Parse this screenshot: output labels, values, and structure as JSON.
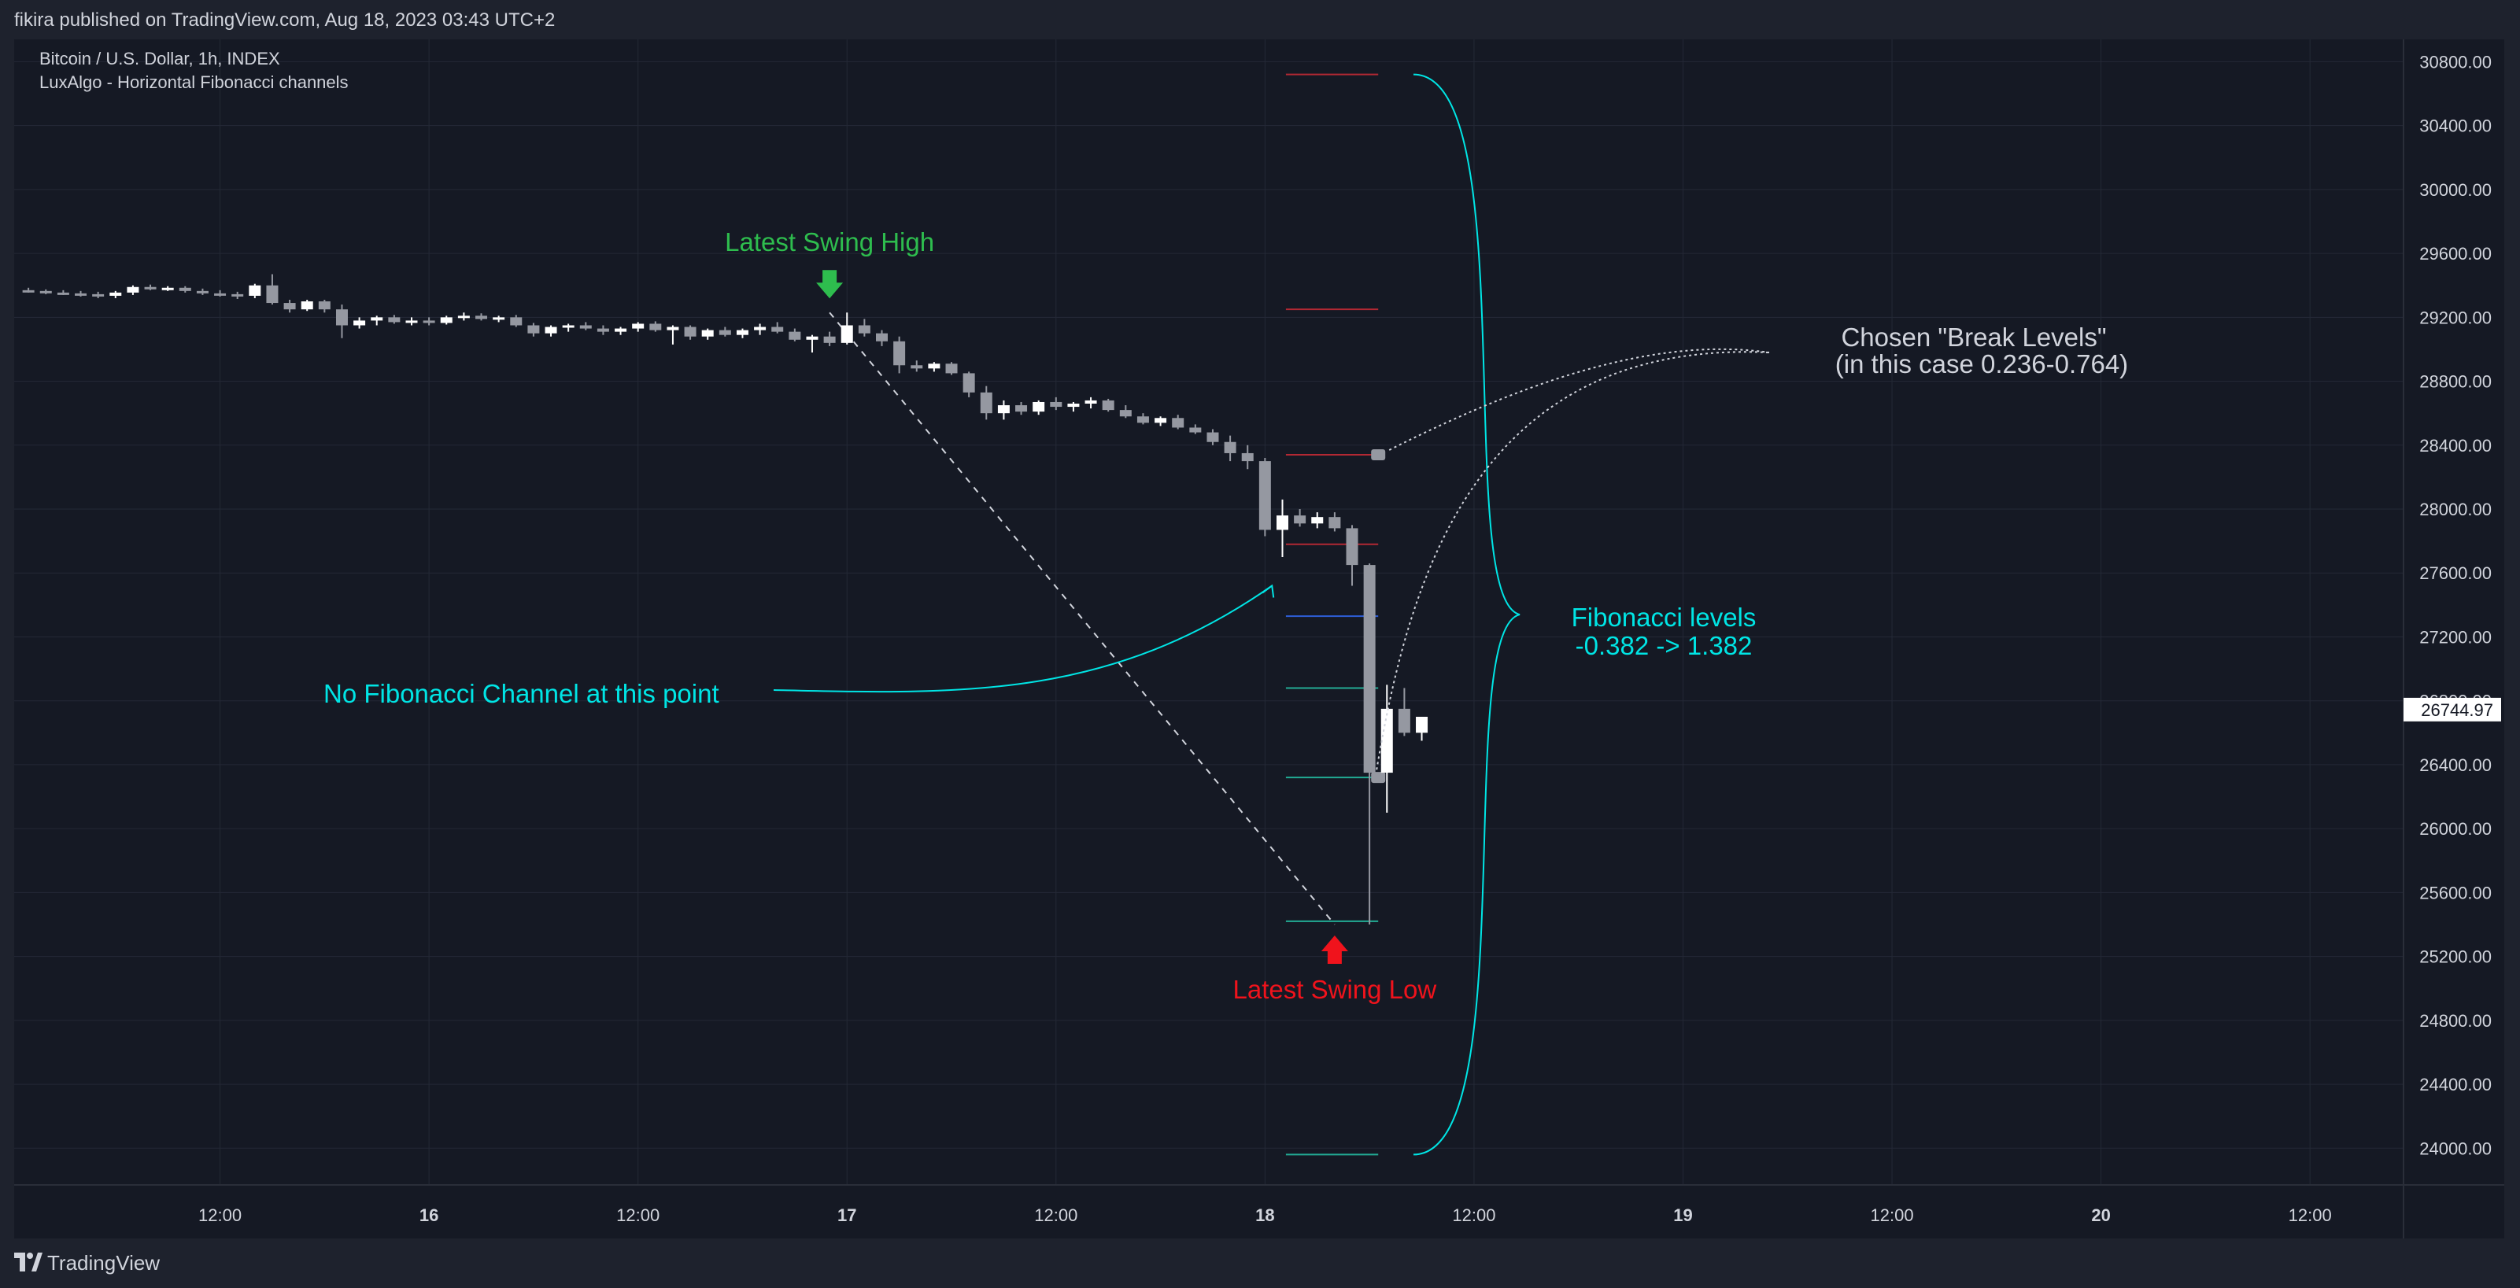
{
  "publish_line": "fikira published on TradingView.com, Aug 18, 2023 03:43 UTC+2",
  "legend": {
    "symbol": "Bitcoin / U.S. Dollar, 1h, INDEX",
    "indicator": "LuxAlgo - Horizontal Fibonacci channels"
  },
  "footer": {
    "brand": "TradingView"
  },
  "colors": {
    "background": "#151924",
    "frame": "#1e222d",
    "grid": "#242936",
    "text": "#d1d4dc",
    "candle_up": "#ffffff",
    "candle_down": "#9598a1",
    "fib_red": "#b22833",
    "fib_blue": "#2e5ed8",
    "fib_green": "#22ab94",
    "annotation_cyan": "#00e5e5",
    "annotation_green": "#2ebd4e",
    "annotation_red": "#f0131c"
  },
  "chart_data": {
    "type": "candlestick",
    "x_ticks": [
      {
        "label": "12:00",
        "h": 12
      },
      {
        "label": "16",
        "h": 24
      },
      {
        "label": "12:00",
        "h": 36
      },
      {
        "label": "17",
        "h": 48
      },
      {
        "label": "12:00",
        "h": 60
      },
      {
        "label": "18",
        "h": 72
      },
      {
        "label": "12:00",
        "h": 84
      },
      {
        "label": "19",
        "h": 96
      },
      {
        "label": "12:00",
        "h": 108
      },
      {
        "label": "20",
        "h": 120
      },
      {
        "label": "12:00",
        "h": 132
      }
    ],
    "y_ticks": [
      24000,
      24400,
      24800,
      25200,
      25600,
      26000,
      26400,
      26800,
      27200,
      27600,
      28000,
      28400,
      28800,
      29200,
      29600,
      30000,
      30400,
      30800
    ],
    "y_tick_labels": [
      "24000.00",
      "24400.00",
      "24800.00",
      "25200.00",
      "25600.00",
      "26000.00",
      "26400.00",
      "26800.00",
      "27200.00",
      "27600.00",
      "28000.00",
      "28400.00",
      "28800.00",
      "29200.00",
      "29600.00",
      "30000.00",
      "30400.00",
      "30800.00"
    ],
    "ylim": [
      23770,
      30940
    ],
    "current_price": 26744.97,
    "current_price_label": "26744.97",
    "candles": [
      [
        29370,
        29385,
        29355,
        29365
      ],
      [
        29365,
        29375,
        29345,
        29355
      ],
      [
        29355,
        29370,
        29340,
        29350
      ],
      [
        29350,
        29365,
        29330,
        29345
      ],
      [
        29345,
        29360,
        29320,
        29335
      ],
      [
        29335,
        29365,
        29320,
        29355
      ],
      [
        29355,
        29400,
        29340,
        29390
      ],
      [
        29390,
        29405,
        29370,
        29380
      ],
      [
        29380,
        29395,
        29365,
        29385
      ],
      [
        29385,
        29395,
        29355,
        29365
      ],
      [
        29365,
        29380,
        29340,
        29350
      ],
      [
        29350,
        29370,
        29330,
        29345
      ],
      [
        29345,
        29360,
        29315,
        29335
      ],
      [
        29335,
        29410,
        29320,
        29400
      ],
      [
        29400,
        29470,
        29280,
        29290
      ],
      [
        29290,
        29310,
        29230,
        29250
      ],
      [
        29250,
        29310,
        29240,
        29300
      ],
      [
        29300,
        29310,
        29230,
        29250
      ],
      [
        29250,
        29280,
        29070,
        29150
      ],
      [
        29150,
        29200,
        29130,
        29180
      ],
      [
        29180,
        29210,
        29150,
        29200
      ],
      [
        29200,
        29215,
        29160,
        29170
      ],
      [
        29170,
        29200,
        29150,
        29180
      ],
      [
        29180,
        29200,
        29150,
        29165
      ],
      [
        29165,
        29210,
        29155,
        29200
      ],
      [
        29200,
        29230,
        29180,
        29210
      ],
      [
        29210,
        29225,
        29180,
        29190
      ],
      [
        29190,
        29210,
        29170,
        29200
      ],
      [
        29200,
        29215,
        29140,
        29150
      ],
      [
        29150,
        29165,
        29080,
        29100
      ],
      [
        29100,
        29150,
        29080,
        29140
      ],
      [
        29140,
        29160,
        29110,
        29150
      ],
      [
        29150,
        29170,
        29120,
        29130
      ],
      [
        29130,
        29150,
        29090,
        29110
      ],
      [
        29110,
        29140,
        29090,
        29130
      ],
      [
        29130,
        29170,
        29110,
        29160
      ],
      [
        29160,
        29175,
        29110,
        29120
      ],
      [
        29120,
        29150,
        29030,
        29140
      ],
      [
        29140,
        29150,
        29060,
        29080
      ],
      [
        29080,
        29130,
        29060,
        29120
      ],
      [
        29120,
        29140,
        29080,
        29090
      ],
      [
        29090,
        29130,
        29070,
        29120
      ],
      [
        29120,
        29160,
        29090,
        29140
      ],
      [
        29140,
        29170,
        29100,
        29110
      ],
      [
        29110,
        29130,
        29050,
        29060
      ],
      [
        29060,
        29090,
        28980,
        29080
      ],
      [
        29080,
        29110,
        29020,
        29040
      ],
      [
        29040,
        29230,
        29030,
        29150
      ],
      [
        29150,
        29190,
        29080,
        29100
      ],
      [
        29100,
        29120,
        29020,
        29050
      ],
      [
        29050,
        29080,
        28850,
        28900
      ],
      [
        28900,
        28930,
        28860,
        28880
      ],
      [
        28880,
        28920,
        28860,
        28910
      ],
      [
        28910,
        28920,
        28840,
        28850
      ],
      [
        28850,
        28860,
        28700,
        28730
      ],
      [
        28730,
        28770,
        28560,
        28600
      ],
      [
        28600,
        28680,
        28560,
        28650
      ],
      [
        28650,
        28670,
        28590,
        28610
      ],
      [
        28610,
        28680,
        28590,
        28670
      ],
      [
        28670,
        28700,
        28620,
        28640
      ],
      [
        28640,
        28670,
        28610,
        28660
      ],
      [
        28660,
        28700,
        28630,
        28680
      ],
      [
        28680,
        28690,
        28610,
        28620
      ],
      [
        28620,
        28650,
        28570,
        28580
      ],
      [
        28580,
        28600,
        28530,
        28540
      ],
      [
        28540,
        28580,
        28520,
        28570
      ],
      [
        28570,
        28590,
        28500,
        28510
      ],
      [
        28510,
        28530,
        28470,
        28480
      ],
      [
        28480,
        28500,
        28400,
        28420
      ],
      [
        28420,
        28460,
        28300,
        28350
      ],
      [
        28350,
        28400,
        28250,
        28300
      ],
      [
        28300,
        28320,
        27830,
        27870
      ],
      [
        27870,
        28060,
        27700,
        27960
      ],
      [
        27960,
        28000,
        27890,
        27910
      ],
      [
        27910,
        27980,
        27880,
        27950
      ],
      [
        27950,
        27980,
        27860,
        27880
      ],
      [
        27880,
        27900,
        27520,
        27650
      ],
      [
        27650,
        27660,
        25400,
        26350
      ],
      [
        26350,
        26900,
        26100,
        26750
      ],
      [
        26750,
        26880,
        26580,
        26600
      ],
      [
        26600,
        26700,
        26550,
        26700
      ]
    ],
    "fib_levels": [
      {
        "value": 30720,
        "color": "red"
      },
      {
        "value": 29250,
        "color": "red"
      },
      {
        "value": 28340,
        "color": "red"
      },
      {
        "value": 27780,
        "color": "red"
      },
      {
        "value": 27330,
        "color": "blue"
      },
      {
        "value": 26880,
        "color": "green"
      },
      {
        "value": 26320,
        "color": "green"
      },
      {
        "value": 25420,
        "color": "green"
      },
      {
        "value": 23960,
        "color": "green"
      }
    ],
    "break_markers": [
      28340,
      26320
    ],
    "swing_high": {
      "label": "Latest Swing High",
      "h": 47,
      "value": 29230
    },
    "swing_low": {
      "label": "Latest Swing Low",
      "h": 76,
      "value": 25400
    },
    "annotations": {
      "no_channel": "No Fibonacci Channel at this point",
      "break_levels_line1": "Chosen \"Break Levels\"",
      "break_levels_line2": "(in this case 0.236-0.764)",
      "fib_levels_line1": "Fibonacci levels",
      "fib_levels_line2": "-0.382 -> 1.382"
    }
  }
}
